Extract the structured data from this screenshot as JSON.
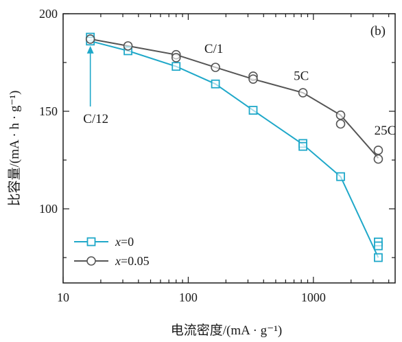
{
  "chart_data": {
    "type": "line",
    "panel_label": "(b)",
    "xlabel": "电流密度/(mA · g⁻¹)",
    "ylabel": "比容量/(mA · h · g⁻¹)",
    "xscale": "log",
    "xlim": [
      10,
      4500
    ],
    "ylim": [
      62,
      200
    ],
    "xticks": [
      10,
      100,
      1000
    ],
    "xtick_labels": [
      "10",
      "100",
      "1000"
    ],
    "yticks": [
      100,
      150,
      200
    ],
    "ytick_labels": [
      "100",
      "150",
      "200"
    ],
    "grid": false,
    "legend_position": "bottom-left",
    "annotations": [
      {
        "text": "C/12",
        "x": 16.5,
        "y": 144,
        "arrow_to": [
          16.5,
          187
        ]
      },
      {
        "text": "C/1",
        "x": 160,
        "y": 180
      },
      {
        "text": "5C",
        "x": 800,
        "y": 166
      },
      {
        "text": "25C",
        "x": 3300,
        "y": 138
      }
    ],
    "series": [
      {
        "name": "x=0",
        "name_var": "x",
        "name_rest": "=0",
        "color": "#1fa8c9",
        "marker": "square",
        "line_x": [
          16.5,
          33,
          80,
          165,
          330,
          825,
          1650,
          3300
        ],
        "line_y": [
          186,
          181,
          173,
          164,
          150.5,
          133,
          116.5,
          75
        ],
        "points": [
          {
            "x": 16.5,
            "y": 188
          },
          {
            "x": 16.5,
            "y": 186
          },
          {
            "x": 33,
            "y": 181
          },
          {
            "x": 80,
            "y": 173
          },
          {
            "x": 165,
            "y": 164
          },
          {
            "x": 330,
            "y": 150.5
          },
          {
            "x": 825,
            "y": 133.5
          },
          {
            "x": 825,
            "y": 132
          },
          {
            "x": 1650,
            "y": 116.5
          },
          {
            "x": 3300,
            "y": 83
          },
          {
            "x": 3300,
            "y": 81
          },
          {
            "x": 3300,
            "y": 75
          }
        ]
      },
      {
        "name": "x=0.05",
        "name_var": "x",
        "name_rest": "=0.05",
        "color": "#555555",
        "marker": "circle",
        "line_x": [
          16.5,
          33,
          80,
          165,
          330,
          825,
          1650,
          3300
        ],
        "line_y": [
          187,
          183.5,
          179,
          172.5,
          166.5,
          159.5,
          148,
          126
        ],
        "points": [
          {
            "x": 16.5,
            "y": 187
          },
          {
            "x": 33,
            "y": 183.5
          },
          {
            "x": 80,
            "y": 179
          },
          {
            "x": 80,
            "y": 177.5
          },
          {
            "x": 165,
            "y": 172.5
          },
          {
            "x": 330,
            "y": 168
          },
          {
            "x": 330,
            "y": 166.5
          },
          {
            "x": 825,
            "y": 159.5
          },
          {
            "x": 1650,
            "y": 148
          },
          {
            "x": 1650,
            "y": 143.5
          },
          {
            "x": 3300,
            "y": 130
          },
          {
            "x": 3300,
            "y": 125.5
          }
        ]
      }
    ]
  }
}
